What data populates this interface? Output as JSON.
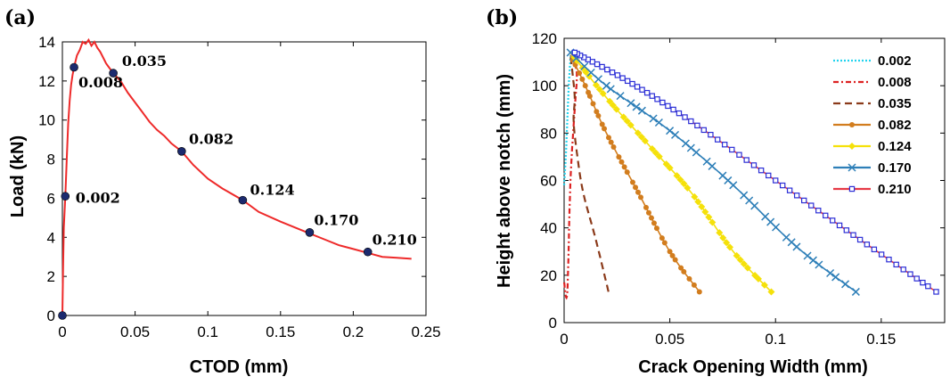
{
  "chart_data": [
    {
      "panel": "(a)",
      "type": "line",
      "xlabel": "CTOD (mm)",
      "ylabel": "Load (kN)",
      "xlim": [
        0,
        0.25
      ],
      "ylim": [
        0,
        14
      ],
      "xticks": [
        "0",
        "0.05",
        "0.1",
        "0.15",
        "0.2",
        "0.25"
      ],
      "yticks": [
        "0",
        "2",
        "4",
        "6",
        "8",
        "10",
        "12",
        "14"
      ],
      "grid": false,
      "curve_color": "#ee2a2a",
      "marker_color": "#1c2a6e",
      "series": [
        {
          "x": [
            0,
            0.0005,
            0.001,
            0.002,
            0.003,
            0.004,
            0.005,
            0.006,
            0.007,
            0.008,
            0.01,
            0.012,
            0.014,
            0.016,
            0.018,
            0.02,
            0.022,
            0.024,
            0.026,
            0.028,
            0.03,
            0.032,
            0.035,
            0.04,
            0.045,
            0.05,
            0.055,
            0.06,
            0.065,
            0.07,
            0.075,
            0.082,
            0.09,
            0.1,
            0.11,
            0.124,
            0.135,
            0.15,
            0.16,
            0.17,
            0.18,
            0.19,
            0.2,
            0.21,
            0.22,
            0.23,
            0.24
          ],
          "values": [
            0,
            2.5,
            4.5,
            6.1,
            8.0,
            9.8,
            11.0,
            11.8,
            12.3,
            12.7,
            13.3,
            13.6,
            14.0,
            13.9,
            14.1,
            13.8,
            14.0,
            13.7,
            13.5,
            13.2,
            12.9,
            12.7,
            12.4,
            12.0,
            11.4,
            10.9,
            10.4,
            9.9,
            9.5,
            9.2,
            8.8,
            8.4,
            7.7,
            7.0,
            6.5,
            5.9,
            5.3,
            4.8,
            4.5,
            4.2,
            3.9,
            3.6,
            3.4,
            3.2,
            3.0,
            2.95,
            2.9
          ]
        }
      ],
      "markers": [
        {
          "x": 0.0,
          "y": 0.0
        },
        {
          "x": 0.002,
          "y": 6.1
        },
        {
          "x": 0.008,
          "y": 12.7
        },
        {
          "x": 0.035,
          "y": 12.4
        },
        {
          "x": 0.082,
          "y": 8.4
        },
        {
          "x": 0.124,
          "y": 5.9
        },
        {
          "x": 0.17,
          "y": 4.25
        },
        {
          "x": 0.21,
          "y": 3.25
        }
      ],
      "annotations": [
        {
          "text": "0.002",
          "x": 0.009,
          "y": 6.0
        },
        {
          "text": "0.008",
          "x": 0.011,
          "y": 11.9
        },
        {
          "text": "0.035",
          "x": 0.041,
          "y": 13.0
        },
        {
          "text": "0.082",
          "x": 0.087,
          "y": 9.0
        },
        {
          "text": "0.124",
          "x": 0.129,
          "y": 6.4
        },
        {
          "text": "0.170",
          "x": 0.173,
          "y": 4.85
        },
        {
          "text": "0.210",
          "x": 0.213,
          "y": 3.85
        }
      ]
    },
    {
      "panel": "(b)",
      "type": "line",
      "xlabel": "Crack Opening Width (mm)",
      "ylabel": "Height above notch (mm)",
      "xlim": [
        0,
        0.18
      ],
      "ylim": [
        0,
        120
      ],
      "xticks": [
        "0",
        "0.05",
        "0.1",
        "0.15"
      ],
      "yticks": [
        "0",
        "20",
        "40",
        "60",
        "80",
        "100",
        "120"
      ],
      "grid": false,
      "legend_position": "top-right",
      "series": [
        {
          "name": "0.002",
          "color": "#22d3ee",
          "style": "dotted",
          "marker": "none",
          "x": [
            0.0,
            0.0008,
            0.0015,
            0.0022,
            0.003,
            0.003
          ],
          "y": [
            58,
            70,
            85,
            100,
            112,
            114
          ]
        },
        {
          "name": "0.008",
          "color": "#dd2222",
          "style": "dashdot",
          "marker": "none",
          "x": [
            0.0,
            0.0015,
            0.003,
            0.005,
            0.006,
            0.004
          ],
          "y": [
            17,
            13,
            60,
            90,
            105,
            112
          ]
        },
        {
          "name": "0.035",
          "color": "#8b3a1a",
          "style": "dashed",
          "marker": "none",
          "x": [
            0.021,
            0.015,
            0.009,
            0.006,
            0.0045,
            0.005,
            0.004,
            0.003
          ],
          "y": [
            13,
            35,
            55,
            72,
            85,
            95,
            105,
            113
          ]
        },
        {
          "name": "0.082",
          "color": "#d27d1e",
          "style": "solid",
          "marker": "dot",
          "x": [
            0.064,
            0.05,
            0.035,
            0.02,
            0.01,
            0.003
          ],
          "y": [
            13,
            30,
            55,
            80,
            100,
            113
          ]
        },
        {
          "name": "0.124",
          "color": "#f5e10a",
          "style": "solid",
          "marker": "diamond",
          "x": [
            0.098,
            0.08,
            0.06,
            0.04,
            0.02,
            0.003
          ],
          "y": [
            13,
            30,
            55,
            75,
            95,
            114
          ]
        },
        {
          "name": "0.170",
          "color": "#2e7fb8",
          "style": "solid",
          "marker": "x",
          "x": [
            0.138,
            0.11,
            0.08,
            0.05,
            0.02,
            0.003
          ],
          "y": [
            13,
            32,
            58,
            81,
            100,
            114
          ]
        },
        {
          "name": "0.210",
          "color": "#e63946",
          "style": "solid",
          "marker": "square",
          "marker_color": "#2b2ed6",
          "x": [
            0.176,
            0.14,
            0.1,
            0.06,
            0.03,
            0.005
          ],
          "y": [
            13,
            35,
            60,
            85,
            102,
            114
          ]
        }
      ]
    }
  ]
}
